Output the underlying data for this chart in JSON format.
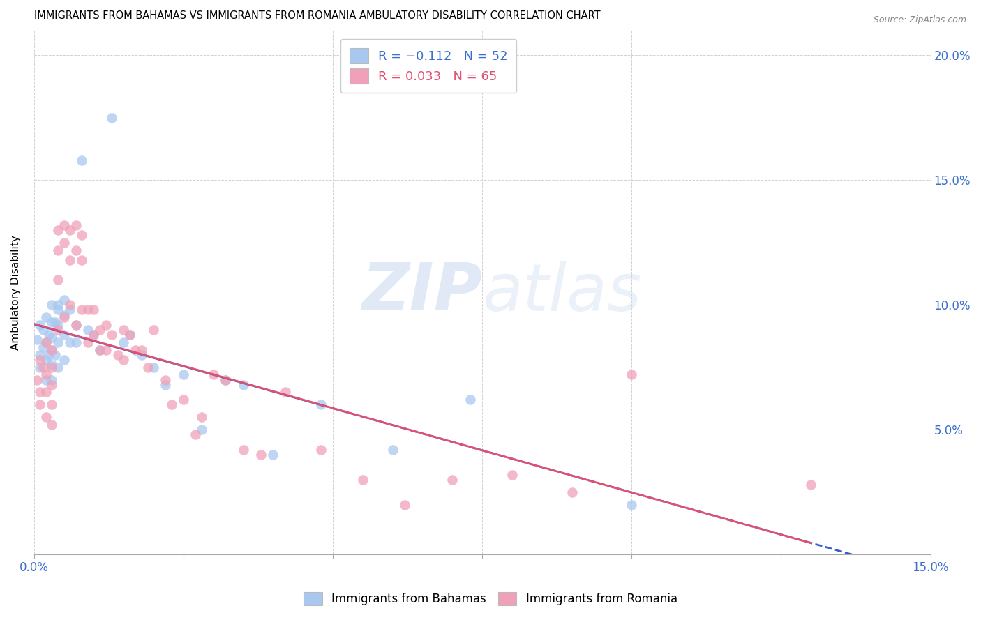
{
  "title": "IMMIGRANTS FROM BAHAMAS VS IMMIGRANTS FROM ROMANIA AMBULATORY DISABILITY CORRELATION CHART",
  "source": "Source: ZipAtlas.com",
  "ylabel": "Ambulatory Disability",
  "xlim": [
    0.0,
    0.15
  ],
  "ylim": [
    0.0,
    0.21
  ],
  "bahamas_color": "#a8c8f0",
  "romania_color": "#f0a0b8",
  "bahamas_line_color": "#3a5fcd",
  "romania_line_color": "#e05070",
  "watermark_text": "ZIPatlas",
  "bahamas_x": [
    0.0005,
    0.001,
    0.001,
    0.001,
    0.0015,
    0.0015,
    0.002,
    0.002,
    0.002,
    0.002,
    0.0025,
    0.0025,
    0.003,
    0.003,
    0.003,
    0.003,
    0.003,
    0.003,
    0.0035,
    0.0035,
    0.004,
    0.004,
    0.004,
    0.004,
    0.004,
    0.005,
    0.005,
    0.005,
    0.005,
    0.006,
    0.006,
    0.007,
    0.007,
    0.008,
    0.009,
    0.01,
    0.011,
    0.013,
    0.015,
    0.016,
    0.018,
    0.02,
    0.022,
    0.025,
    0.028,
    0.032,
    0.035,
    0.04,
    0.048,
    0.06,
    0.073,
    0.1
  ],
  "bahamas_y": [
    0.086,
    0.092,
    0.08,
    0.075,
    0.09,
    0.083,
    0.095,
    0.085,
    0.078,
    0.07,
    0.088,
    0.08,
    0.1,
    0.093,
    0.087,
    0.082,
    0.076,
    0.07,
    0.093,
    0.08,
    0.1,
    0.098,
    0.092,
    0.085,
    0.075,
    0.102,
    0.096,
    0.088,
    0.078,
    0.098,
    0.085,
    0.092,
    0.085,
    0.158,
    0.09,
    0.088,
    0.082,
    0.175,
    0.085,
    0.088,
    0.08,
    0.075,
    0.068,
    0.072,
    0.05,
    0.07,
    0.068,
    0.04,
    0.06,
    0.042,
    0.062,
    0.02
  ],
  "romania_x": [
    0.0005,
    0.001,
    0.001,
    0.001,
    0.0015,
    0.002,
    0.002,
    0.002,
    0.002,
    0.003,
    0.003,
    0.003,
    0.003,
    0.003,
    0.004,
    0.004,
    0.004,
    0.004,
    0.005,
    0.005,
    0.005,
    0.006,
    0.006,
    0.006,
    0.007,
    0.007,
    0.007,
    0.008,
    0.008,
    0.008,
    0.009,
    0.009,
    0.01,
    0.01,
    0.011,
    0.011,
    0.012,
    0.012,
    0.013,
    0.014,
    0.015,
    0.015,
    0.016,
    0.017,
    0.018,
    0.019,
    0.02,
    0.022,
    0.023,
    0.025,
    0.027,
    0.028,
    0.03,
    0.032,
    0.035,
    0.038,
    0.042,
    0.048,
    0.055,
    0.062,
    0.07,
    0.08,
    0.09,
    0.1,
    0.13
  ],
  "romania_y": [
    0.07,
    0.078,
    0.065,
    0.06,
    0.075,
    0.085,
    0.072,
    0.065,
    0.055,
    0.082,
    0.075,
    0.068,
    0.06,
    0.052,
    0.13,
    0.122,
    0.11,
    0.09,
    0.132,
    0.125,
    0.095,
    0.13,
    0.118,
    0.1,
    0.132,
    0.122,
    0.092,
    0.128,
    0.118,
    0.098,
    0.098,
    0.085,
    0.098,
    0.088,
    0.09,
    0.082,
    0.092,
    0.082,
    0.088,
    0.08,
    0.09,
    0.078,
    0.088,
    0.082,
    0.082,
    0.075,
    0.09,
    0.07,
    0.06,
    0.062,
    0.048,
    0.055,
    0.072,
    0.07,
    0.042,
    0.04,
    0.065,
    0.042,
    0.03,
    0.02,
    0.03,
    0.032,
    0.025,
    0.072,
    0.028
  ]
}
